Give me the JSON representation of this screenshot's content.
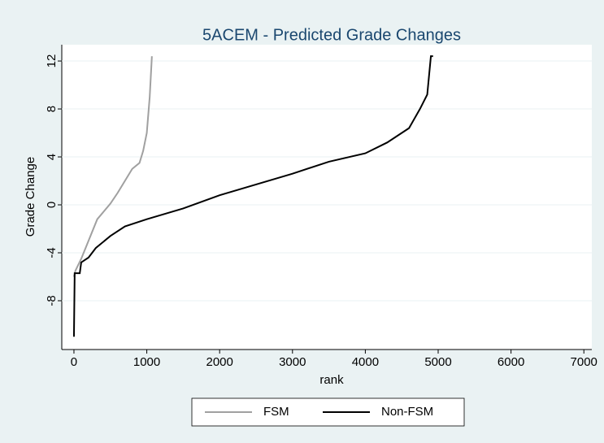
{
  "chart_data": {
    "type": "line",
    "title": "5ACEM - Predicted Grade Changes",
    "xlabel": "rank",
    "ylabel": "Grade Change",
    "xlim": [
      -167,
      7109
    ],
    "ylim": [
      -12.07,
      13.36
    ],
    "xticks": [
      0,
      1000,
      2000,
      3000,
      4000,
      5000,
      6000,
      7000
    ],
    "yticks": [
      -8,
      -4,
      0,
      4,
      8,
      12
    ],
    "grid": true,
    "legend": "bottom",
    "series": [
      {
        "name": "FSM",
        "color": "#a0a0a0",
        "x": [
          0,
          20,
          100,
          200,
          320,
          500,
          600,
          700,
          800,
          900,
          950,
          1000,
          1040,
          1070
        ],
        "values": [
          -6,
          -5.5,
          -4.5,
          -3,
          -1.2,
          0.1,
          1,
          2,
          3,
          3.5,
          4.5,
          6,
          9,
          12.4
        ]
      },
      {
        "name": "Non-FSM",
        "color": "#000000",
        "x": [
          0,
          10,
          80,
          100,
          200,
          300,
          500,
          700,
          1000,
          1500,
          2000,
          2500,
          3000,
          3500,
          4000,
          4300,
          4600,
          4750,
          4850,
          4900,
          4930
        ],
        "values": [
          -11,
          -5.7,
          -5.7,
          -4.8,
          -4.4,
          -3.6,
          -2.6,
          -1.8,
          -1.2,
          -0.3,
          0.8,
          1.7,
          2.6,
          3.6,
          4.3,
          5.2,
          6.4,
          8,
          9.2,
          12.4,
          12.4
        ]
      }
    ]
  }
}
